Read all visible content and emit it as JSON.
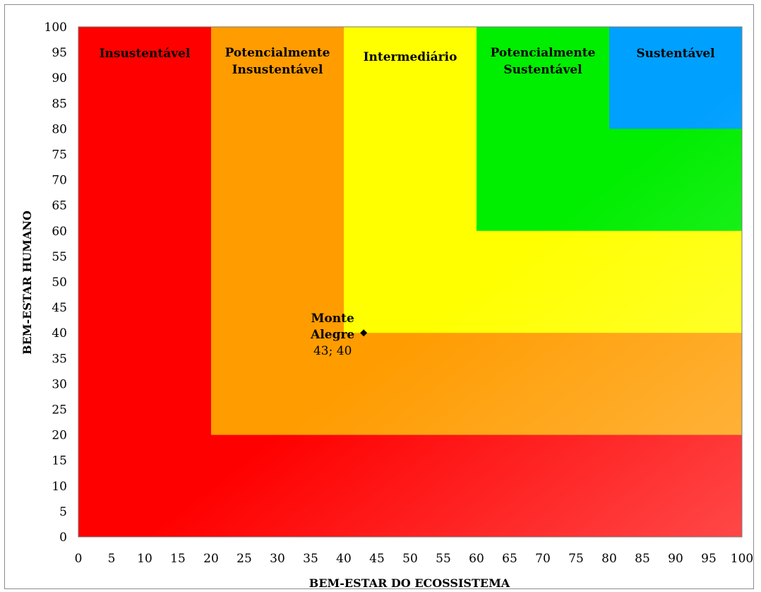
{
  "chart_data": {
    "type": "scatter",
    "xlabel": "BEM-ESTAR DO ECOSSISTEMA",
    "ylabel": "BEM-ESTAR HUMANO",
    "xlim": [
      0,
      100
    ],
    "ylim": [
      0,
      100
    ],
    "xticks": [
      0,
      5,
      10,
      15,
      20,
      25,
      30,
      35,
      40,
      45,
      50,
      55,
      60,
      65,
      70,
      75,
      80,
      85,
      90,
      95,
      100
    ],
    "yticks": [
      0,
      5,
      10,
      15,
      20,
      25,
      30,
      35,
      40,
      45,
      50,
      55,
      60,
      65,
      70,
      75,
      80,
      85,
      90,
      95,
      100
    ],
    "grid": false,
    "zones": [
      {
        "name": "Insustentável",
        "min": 0,
        "max": 100,
        "color": "#ff0000",
        "label_lines": [
          "Insustentável"
        ]
      },
      {
        "name": "Potencialmente Insustentável",
        "min": 20,
        "max": 100,
        "color": "#ff9c00",
        "label_lines": [
          "Potencialmente",
          "Insustentável"
        ]
      },
      {
        "name": "Intermediário",
        "min": 40,
        "max": 100,
        "color": "#ffff00",
        "label_lines": [
          "Intermediário"
        ]
      },
      {
        "name": "Potencialmente Sustentável",
        "min": 60,
        "max": 100,
        "color": "#00ee00",
        "label_lines": [
          "Potencialmente",
          "Sustentável"
        ]
      },
      {
        "name": "Sustentável",
        "min": 80,
        "max": 100,
        "color": "#00a0ff",
        "label_lines": [
          "Sustentável"
        ]
      }
    ],
    "points": [
      {
        "name_lines": [
          "Monte",
          "Alegre"
        ],
        "value_label": "43; 40",
        "x": 43,
        "y": 40,
        "color": "#000000"
      }
    ]
  }
}
